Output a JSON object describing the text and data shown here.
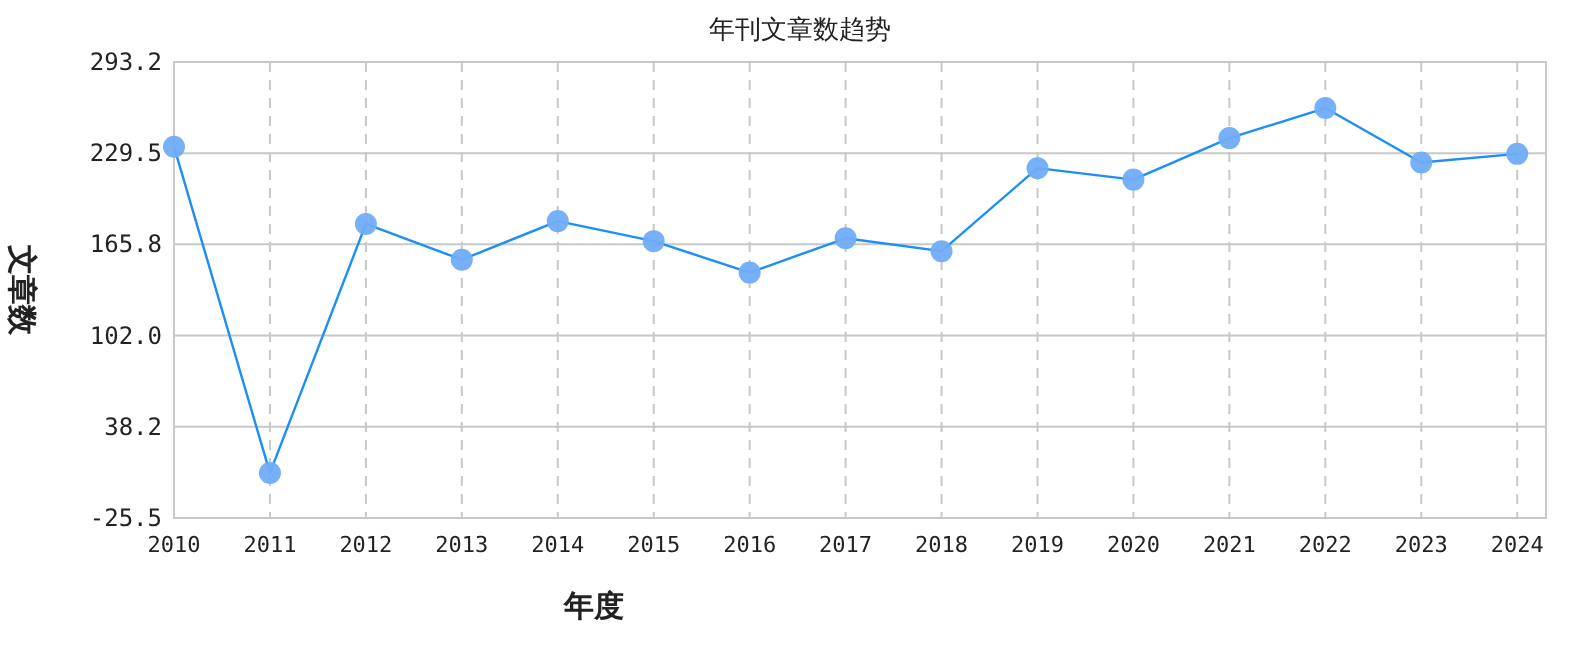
{
  "chart_data": {
    "type": "line",
    "title": "年刊文章数趋势",
    "xlabel": "年度",
    "ylabel": "文章数",
    "categories": [
      "2010",
      "2011",
      "2012",
      "2013",
      "2014",
      "2015",
      "2016",
      "2017",
      "2018",
      "2019",
      "2020",
      "2021",
      "2022",
      "2023",
      "2024"
    ],
    "series": [
      {
        "color": "#1b8ff5",
        "values": [
          234,
          6,
          180,
          155,
          182,
          168,
          146,
          170,
          161,
          219,
          211,
          240,
          261,
          223,
          229
        ]
      }
    ],
    "ylim": [
      -25.5,
      293.2
    ],
    "yticks": [
      {
        "value": -25.5,
        "label": "-25.5"
      },
      {
        "value": 38.2,
        "label": "38.2"
      },
      {
        "value": 102.0,
        "label": "102.0"
      },
      {
        "value": 165.8,
        "label": "165.8"
      },
      {
        "value": 229.5,
        "label": "229.5"
      },
      {
        "value": 293.2,
        "label": "293.2"
      }
    ],
    "grid": true,
    "marker": "circle",
    "line_style": "solid"
  }
}
